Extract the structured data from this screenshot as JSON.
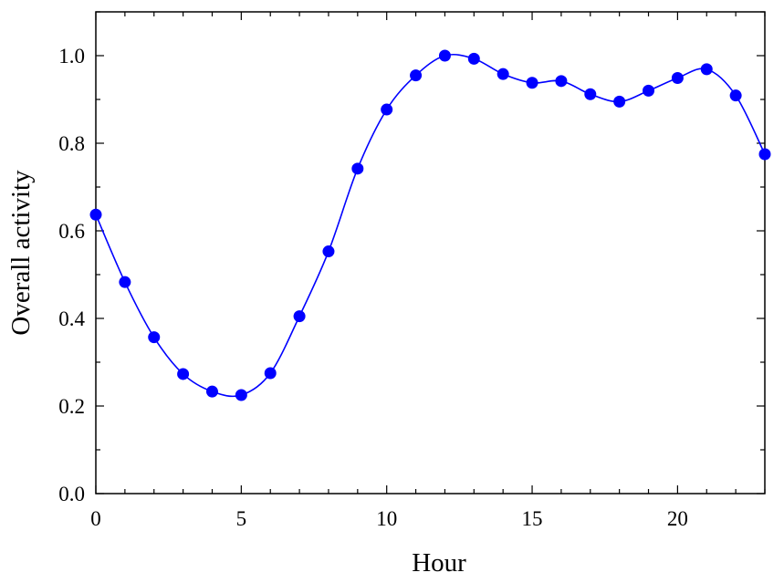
{
  "chart_data": {
    "type": "line",
    "title": "",
    "xlabel": "Hour",
    "ylabel": "Overall activity",
    "xlim": [
      0,
      23
    ],
    "ylim": [
      0,
      1.1
    ],
    "xticks": [
      0,
      5,
      10,
      15,
      20
    ],
    "xtick_labels": [
      "0",
      "5",
      "10",
      "15",
      "20"
    ],
    "yticks": [
      0.0,
      0.2,
      0.4,
      0.6,
      0.8,
      1.0
    ],
    "ytick_labels": [
      "0.0",
      "0.2",
      "0.4",
      "0.6",
      "0.8",
      "1.0"
    ],
    "grid": false,
    "legend": "none",
    "series": [
      {
        "color": "#0000ff",
        "marker": "circle",
        "line": "smooth",
        "x": [
          0,
          1,
          2,
          3,
          4,
          5,
          6,
          7,
          8,
          9,
          10,
          11,
          12,
          13,
          14,
          15,
          16,
          17,
          18,
          19,
          20,
          21,
          22,
          23
        ],
        "values": [
          0.637,
          0.483,
          0.357,
          0.273,
          0.233,
          0.225,
          0.275,
          0.405,
          0.553,
          0.742,
          0.877,
          0.955,
          1.0,
          0.993,
          0.958,
          0.938,
          0.942,
          0.912,
          0.895,
          0.92,
          0.949,
          0.969,
          0.909,
          0.775
        ]
      }
    ]
  }
}
